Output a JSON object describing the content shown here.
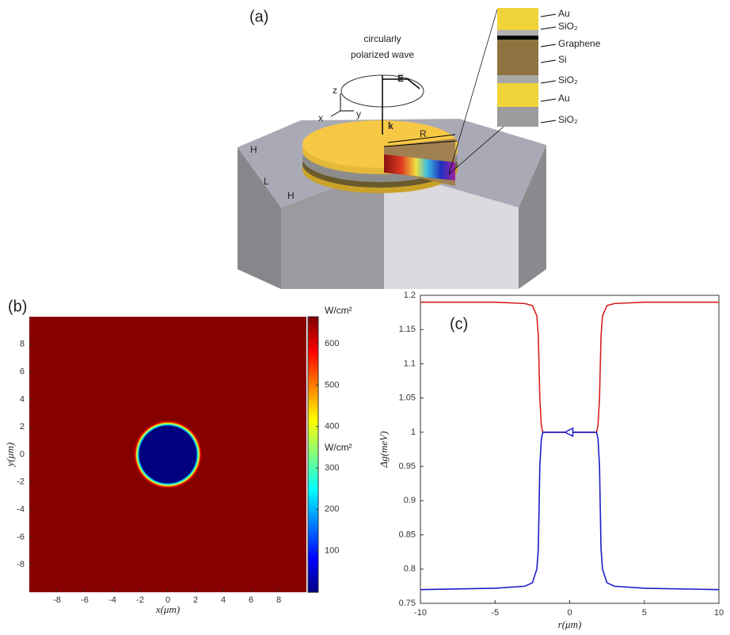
{
  "diagram": {
    "label": "(a)",
    "wave_label": [
      "circularly",
      "polarized wave"
    ],
    "field_labels": {
      "E": "E",
      "k": "k",
      "R": "R"
    },
    "axes": {
      "z": "z",
      "x": "x",
      "y": "y"
    },
    "dims": [
      "H",
      "L",
      "H"
    ],
    "layers": [
      "Au",
      "SiO₂",
      "Graphene",
      "Si",
      "SiO₂",
      "Au",
      "SiO₂"
    ]
  },
  "chart_data": [
    {
      "type": "heatmap",
      "label": "(b)",
      "xlabel": "x(μm)",
      "ylabel": "y(μm)",
      "xlim": [
        -10,
        10
      ],
      "ylim": [
        -10,
        10
      ],
      "xticks": [
        -8,
        -6,
        -4,
        -2,
        0,
        2,
        4,
        6,
        8
      ],
      "yticks": [
        -8,
        -6,
        -4,
        -2,
        0,
        2,
        4,
        6,
        8
      ],
      "disk_radius": 2,
      "inside_value": 0,
      "outside_value": 660,
      "colorbar": {
        "title": "W/cm²",
        "label": "W/cm²",
        "lim": [
          0,
          665
        ],
        "ticks": [
          100,
          200,
          300,
          400,
          500,
          600
        ],
        "colormap": "jet"
      }
    },
    {
      "type": "line",
      "label": "(c)",
      "xlabel": "r(μm)",
      "ylabel": "Δg(meV)",
      "xlim": [
        -10,
        10
      ],
      "ylim": [
        0.75,
        1.2
      ],
      "xticks": [
        -10,
        -5,
        0,
        5,
        10
      ],
      "yticks": [
        0.75,
        0.8,
        0.85,
        0.9,
        0.95,
        1,
        1.05,
        1.1,
        1.15,
        1.2
      ],
      "series": [
        {
          "color": "#d62020",
          "x": [
            -10,
            -5,
            -3,
            -2.5,
            -2.2,
            -2.1,
            -2,
            -1.9,
            -1.8,
            1.8,
            1.9,
            2,
            2.1,
            2.2,
            2.5,
            3,
            5,
            10
          ],
          "values": [
            1.19,
            1.19,
            1.188,
            1.185,
            1.17,
            1.14,
            1.05,
            1.01,
            1,
            1,
            1.01,
            1.05,
            1.14,
            1.17,
            1.185,
            1.188,
            1.19,
            1.19
          ]
        },
        {
          "color": "#1c1cc8",
          "x": [
            -10,
            -5,
            -3,
            -2.5,
            -2.2,
            -2.1,
            -2,
            -1.9,
            -1.8,
            1.8,
            1.9,
            2,
            2.1,
            2.2,
            2.5,
            3,
            5,
            10
          ],
          "values": [
            0.77,
            0.772,
            0.775,
            0.78,
            0.8,
            0.83,
            0.95,
            0.99,
            1,
            1,
            0.99,
            0.95,
            0.83,
            0.8,
            0.78,
            0.775,
            0.772,
            0.77
          ]
        }
      ]
    }
  ]
}
